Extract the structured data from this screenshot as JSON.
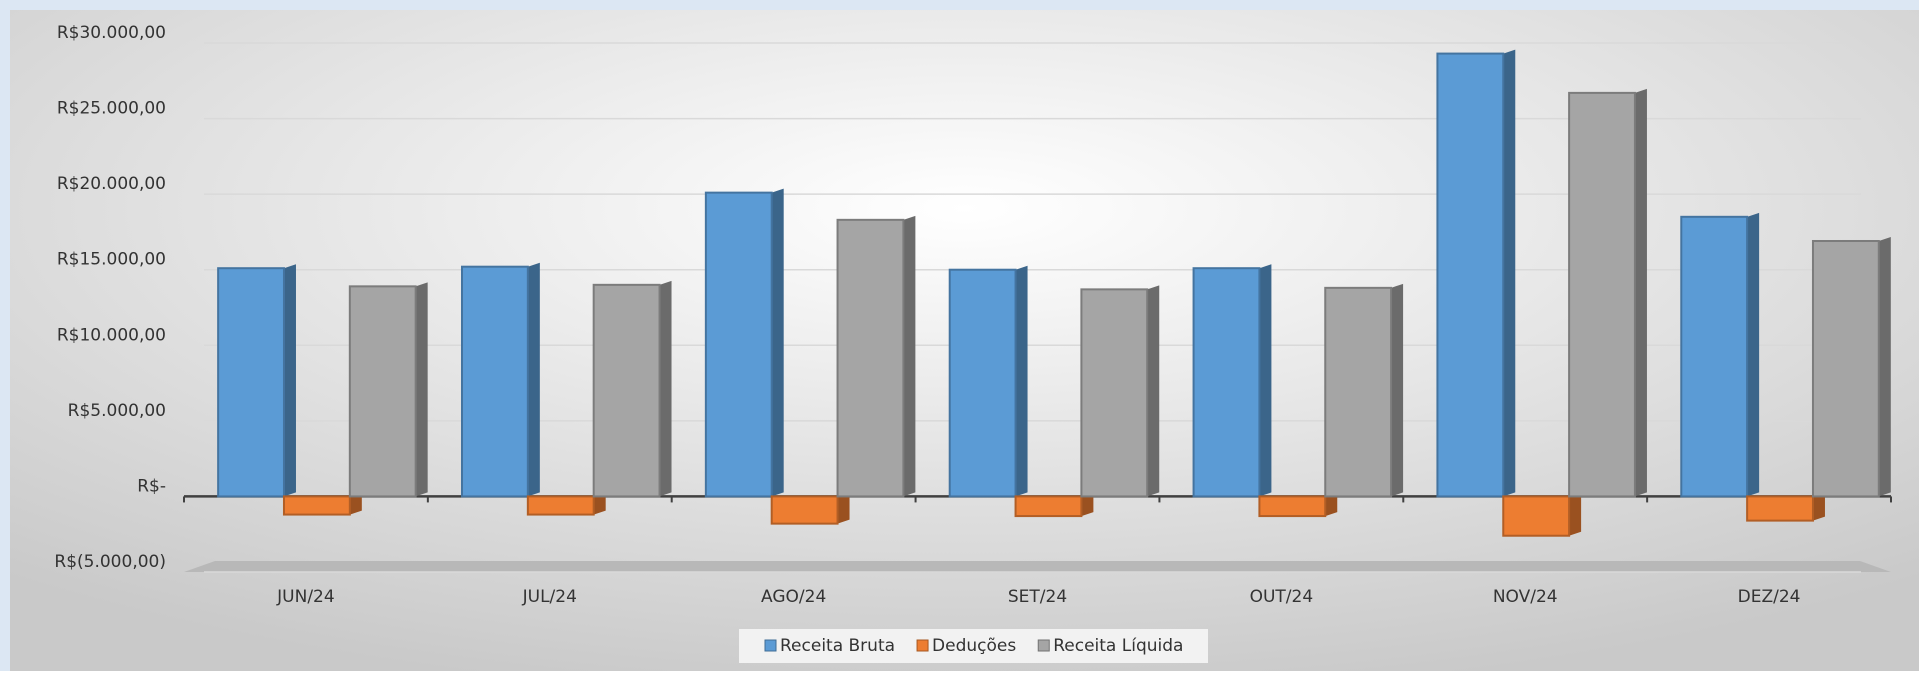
{
  "chart_data": {
    "type": "bar",
    "categories": [
      "JUN/24",
      "JUL/24",
      "AGO/24",
      "SET/24",
      "OUT/24",
      "NOV/24",
      "DEZ/24"
    ],
    "series": [
      {
        "name": "Receita Bruta",
        "color": "#5b9bd5",
        "values": [
          15100,
          15200,
          20100,
          15000,
          15100,
          29300,
          18500
        ]
      },
      {
        "name": "Deduções",
        "color": "#ed7d31",
        "values": [
          -1200,
          -1200,
          -1800,
          -1300,
          -1300,
          -2600,
          -1600
        ]
      },
      {
        "name": "Receita Líquida",
        "color": "#a5a5a5",
        "values": [
          13900,
          14000,
          18300,
          13700,
          13800,
          26700,
          16900
        ]
      }
    ],
    "ylim": [
      -5000,
      30000
    ],
    "yticks": [
      {
        "value": -5000,
        "label": "R$(5.000,00)"
      },
      {
        "value": 0,
        "label": "R$-"
      },
      {
        "value": 5000,
        "label": "R$5.000,00"
      },
      {
        "value": 10000,
        "label": "R$10.000,00"
      },
      {
        "value": 15000,
        "label": "R$15.000,00"
      },
      {
        "value": 20000,
        "label": "R$20.000,00"
      },
      {
        "value": 25000,
        "label": "R$25.000,00"
      },
      {
        "value": 30000,
        "label": "R$30.000,00"
      }
    ],
    "grid": true,
    "legend": "bottom"
  }
}
